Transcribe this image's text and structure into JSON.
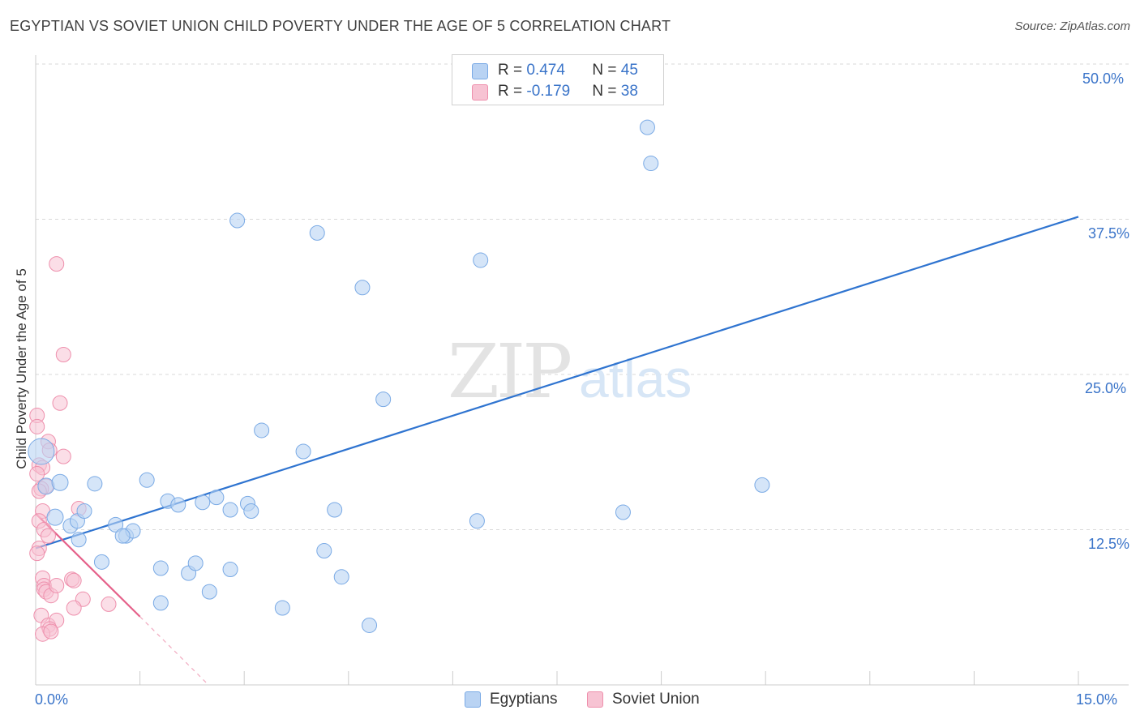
{
  "title": "EGYPTIAN VS SOVIET UNION CHILD POVERTY UNDER THE AGE OF 5 CORRELATION CHART",
  "source": "Source: ZipAtlas.com",
  "watermark": {
    "zip": "ZIP",
    "atlas": "atlas"
  },
  "colors": {
    "blue_fill": "#b9d3f3",
    "blue_stroke": "#7aaae5",
    "blue_line": "#2f74d0",
    "pink_fill": "#f7c3d3",
    "pink_stroke": "#ee8fac",
    "pink_line": "#e5618a",
    "label_blue": "#3a74c9",
    "grid": "#d9d9d9"
  },
  "legend_top": {
    "rows": [
      {
        "r_label": "R = ",
        "r_value": "0.474",
        "n_label": "N = ",
        "n_value": "45"
      },
      {
        "r_label": "R = ",
        "r_value": "-0.179",
        "n_label": "N = ",
        "n_value": "38"
      }
    ]
  },
  "legend_bottom": {
    "items": [
      "Egyptians",
      "Soviet Union"
    ]
  },
  "chart_data": {
    "type": "scatter",
    "title": "EGYPTIAN VS SOVIET UNION CHILD POVERTY UNDER THE AGE OF 5 CORRELATION CHART",
    "xlabel": "",
    "ylabel": "Child Poverty Under the Age of 5",
    "xlim": [
      0,
      15
    ],
    "ylim": [
      0,
      51.5
    ],
    "x_tick_labels": [
      "0.0%",
      "15.0%"
    ],
    "y_ticks": [
      12.5,
      25.0,
      37.5,
      50.0
    ],
    "y_tick_labels": [
      "12.5%",
      "25.0%",
      "37.5%",
      "50.0%"
    ],
    "grid": true,
    "series": [
      {
        "name": "Egyptians",
        "r": 0.474,
        "n": 45,
        "trend": {
          "x0": 0.0,
          "y0": 11.0,
          "x1": 15.0,
          "y1": 37.7
        },
        "points": [
          [
            0.08,
            18.8,
            16
          ],
          [
            0.15,
            16.0,
            10
          ],
          [
            0.35,
            16.3,
            10
          ],
          [
            0.28,
            13.5,
            10
          ],
          [
            0.5,
            12.8,
            9
          ],
          [
            0.6,
            13.2,
            9
          ],
          [
            0.85,
            16.2,
            9
          ],
          [
            0.7,
            14.0,
            9
          ],
          [
            0.62,
            11.7,
            9
          ],
          [
            1.15,
            12.9,
            9
          ],
          [
            1.3,
            12.0,
            9
          ],
          [
            1.4,
            12.4,
            9
          ],
          [
            1.25,
            12.0,
            9
          ],
          [
            0.95,
            9.9,
            9
          ],
          [
            1.6,
            16.5,
            9
          ],
          [
            1.9,
            14.8,
            9
          ],
          [
            2.05,
            14.5,
            9
          ],
          [
            2.4,
            14.7,
            9
          ],
          [
            2.6,
            15.1,
            9
          ],
          [
            1.8,
            9.4,
            9
          ],
          [
            2.2,
            9.0,
            9
          ],
          [
            2.3,
            9.8,
            9
          ],
          [
            2.8,
            14.1,
            9
          ],
          [
            3.05,
            14.6,
            9
          ],
          [
            3.1,
            14.0,
            9
          ],
          [
            2.5,
            7.5,
            9
          ],
          [
            2.8,
            9.3,
            9
          ],
          [
            1.8,
            6.6,
            9
          ],
          [
            2.9,
            37.4,
            9
          ],
          [
            4.05,
            36.4,
            9
          ],
          [
            4.7,
            32.0,
            9
          ],
          [
            3.25,
            20.5,
            9
          ],
          [
            3.85,
            18.8,
            9
          ],
          [
            4.3,
            14.1,
            9
          ],
          [
            4.15,
            10.8,
            9
          ],
          [
            4.4,
            8.7,
            9
          ],
          [
            3.55,
            6.2,
            9
          ],
          [
            4.8,
            4.8,
            9
          ],
          [
            5.0,
            23.0,
            9
          ],
          [
            6.4,
            34.2,
            9
          ],
          [
            6.35,
            13.2,
            9
          ],
          [
            8.8,
            44.9,
            9
          ],
          [
            8.85,
            42.0,
            9
          ],
          [
            8.45,
            13.9,
            9
          ],
          [
            10.45,
            16.1,
            9
          ]
        ]
      },
      {
        "name": "Soviet Union",
        "r": -0.179,
        "n": 38,
        "trend": {
          "x0": 0.0,
          "y0": 13.8,
          "x1": 1.5,
          "y1": 5.5
        },
        "trend_extension": {
          "x0": 1.5,
          "y0": 5.5,
          "x1": 2.45,
          "y1": 0.2
        },
        "points": [
          [
            0.3,
            33.9,
            9
          ],
          [
            0.4,
            26.6,
            9
          ],
          [
            0.35,
            22.7,
            9
          ],
          [
            0.02,
            21.7,
            9
          ],
          [
            0.02,
            20.8,
            9
          ],
          [
            0.18,
            19.6,
            9
          ],
          [
            0.2,
            18.9,
            9
          ],
          [
            0.4,
            18.4,
            9
          ],
          [
            0.05,
            17.7,
            9
          ],
          [
            0.1,
            17.5,
            9
          ],
          [
            0.02,
            17.0,
            9
          ],
          [
            0.15,
            16.0,
            9
          ],
          [
            0.08,
            15.8,
            9
          ],
          [
            0.05,
            15.6,
            9
          ],
          [
            0.1,
            14.0,
            9
          ],
          [
            0.62,
            14.2,
            9
          ],
          [
            0.05,
            13.2,
            9
          ],
          [
            0.12,
            12.5,
            9
          ],
          [
            0.18,
            12.0,
            9
          ],
          [
            0.05,
            11.0,
            9
          ],
          [
            0.02,
            10.6,
            9
          ],
          [
            0.1,
            8.6,
            9
          ],
          [
            0.12,
            8.0,
            9
          ],
          [
            0.12,
            7.7,
            9
          ],
          [
            0.15,
            7.5,
            9
          ],
          [
            0.22,
            7.2,
            9
          ],
          [
            0.3,
            8.0,
            9
          ],
          [
            0.52,
            8.5,
            9
          ],
          [
            0.55,
            8.4,
            9
          ],
          [
            0.68,
            6.9,
            9
          ],
          [
            1.05,
            6.5,
            9
          ],
          [
            0.55,
            6.2,
            9
          ],
          [
            0.08,
            5.6,
            9
          ],
          [
            0.18,
            4.8,
            9
          ],
          [
            0.3,
            5.2,
            9
          ],
          [
            0.2,
            4.5,
            9
          ],
          [
            0.1,
            4.1,
            9
          ],
          [
            0.22,
            4.3,
            9
          ]
        ]
      }
    ]
  }
}
